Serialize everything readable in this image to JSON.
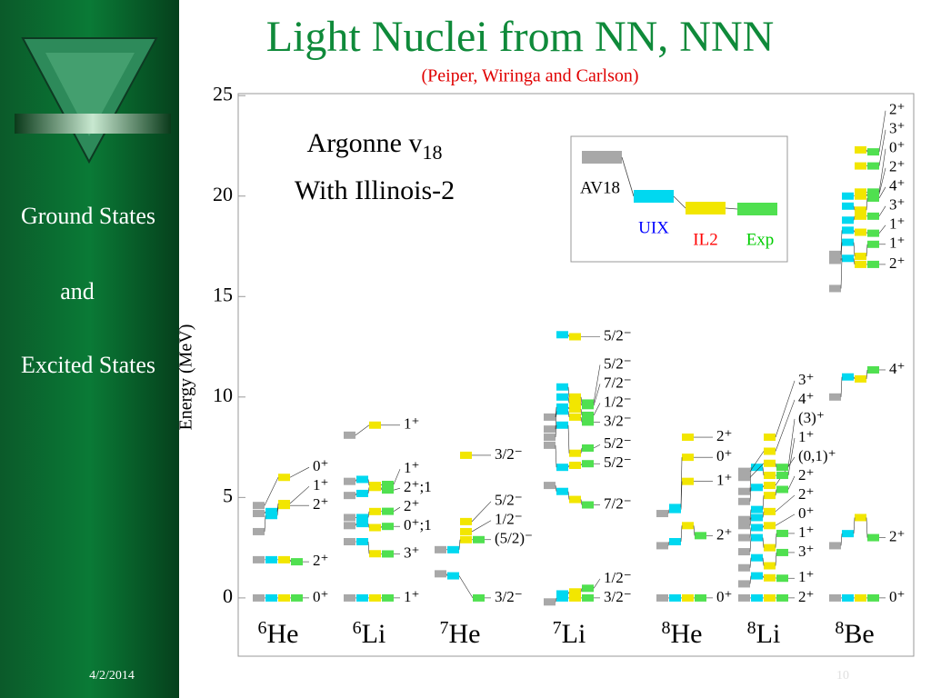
{
  "sidebar": {
    "items": [
      "Ground States",
      "and",
      "Excited States"
    ],
    "date": "4/2/2014"
  },
  "page_number": "10",
  "chart_data": {
    "type": "levels",
    "title": "Light Nuclei from NN, NNN",
    "subtitle": "(Peiper, Wiringa and Carlson)",
    "ylabel": "Energy (MeV)",
    "ylim": [
      -2.9,
      25.1
    ],
    "yticks": [
      0,
      5,
      10,
      15,
      20,
      25
    ],
    "annotation": {
      "line1": "Argonne v",
      "subscript": "18",
      "line2": "With Illinois-2"
    },
    "series": [
      {
        "name": "AV18",
        "color": "#a8a8a8",
        "label_color": "#000000"
      },
      {
        "name": "UIX",
        "color": "#00d8f0",
        "label_color": "#0000ff"
      },
      {
        "name": "IL2",
        "color": "#f2e600",
        "label_color": "#ff0000"
      },
      {
        "name": "Exp",
        "color": "#50e050",
        "label_color": "#00cc00"
      }
    ],
    "nuclei": [
      {
        "mass": "6",
        "symbol": "He",
        "levels": [
          {
            "label": "0⁺",
            "values": [
              0,
              0,
              0,
              0
            ]
          },
          {
            "label": "2⁺",
            "values": [
              1.9,
              1.9,
              1.9,
              1.8
            ]
          },
          {
            "label": "2⁺",
            "values": [
              3.3,
              4.1,
              4.6,
              null
            ]
          },
          {
            "label": "1⁺",
            "values": [
              4.2,
              4.3,
              4.7,
              null
            ]
          },
          {
            "label": "0⁺",
            "values": [
              4.6,
              null,
              6.0,
              null
            ]
          }
        ]
      },
      {
        "mass": "6",
        "symbol": "Li",
        "levels": [
          {
            "label": "1⁺",
            "values": [
              0,
              0,
              0,
              0
            ]
          },
          {
            "label": "3⁺",
            "values": [
              2.8,
              2.8,
              2.2,
              2.19
            ]
          },
          {
            "label": "0⁺;1",
            "values": [
              3.6,
              3.7,
              3.5,
              3.56
            ]
          },
          {
            "label": "2⁺",
            "values": [
              4.0,
              4.0,
              4.3,
              4.31
            ]
          },
          {
            "label": "2⁺;1",
            "values": [
              5.1,
              5.2,
              5.5,
              5.37
            ]
          },
          {
            "label": "1⁺",
            "values": [
              5.8,
              5.9,
              5.6,
              5.65
            ]
          },
          {
            "label": "1⁺",
            "values": [
              8.1,
              null,
              8.6,
              null
            ]
          }
        ]
      },
      {
        "mass": "7",
        "symbol": "He",
        "levels": [
          {
            "label": "3/2⁻",
            "values": [
              1.2,
              1.1,
              null,
              0
            ]
          },
          {
            "label": "(5/2)⁻",
            "values": [
              2.4,
              2.4,
              2.9,
              2.9
            ]
          },
          {
            "label": "1/2⁻",
            "values": [
              null,
              null,
              3.3,
              null
            ]
          },
          {
            "label": "5/2⁻",
            "values": [
              null,
              null,
              3.8,
              null
            ]
          },
          {
            "label": "3/2⁻",
            "values": [
              null,
              null,
              7.1,
              null
            ]
          }
        ]
      },
      {
        "mass": "7",
        "symbol": "Li",
        "levels": [
          {
            "label": "3/2⁻",
            "values": [
              -0.2,
              0,
              0,
              0
            ]
          },
          {
            "label": "1/2⁻",
            "values": [
              null,
              0.2,
              0.3,
              0.48
            ]
          },
          {
            "label": "7/2⁻",
            "values": [
              5.6,
              5.3,
              4.9,
              4.63
            ]
          },
          {
            "label": "5/2⁻",
            "values": [
              7.6,
              6.5,
              6.6,
              6.68
            ]
          },
          {
            "label": "5/2⁻",
            "values": [
              8.0,
              8.6,
              7.2,
              7.46
            ]
          },
          {
            "label": "3/2⁻",
            "values": [
              8.4,
              9.3,
              9.0,
              8.75
            ]
          },
          {
            "label": "1/2⁻",
            "values": [
              9.0,
              9.5,
              9.4,
              9.09
            ]
          },
          {
            "label": "7/2⁻",
            "values": [
              null,
              10.0,
              9.7,
              9.57
            ]
          },
          {
            "label": "5/2⁻",
            "values": [
              null,
              10.5,
              10.0,
              9.7
            ]
          },
          {
            "label": "5/2⁻",
            "values": [
              null,
              13.1,
              13.0,
              null
            ]
          }
        ]
      },
      {
        "mass": "8",
        "symbol": "He",
        "levels": [
          {
            "label": "0⁺",
            "values": [
              0,
              0,
              0,
              0
            ]
          },
          {
            "label": "2⁺",
            "values": [
              2.6,
              2.8,
              3.6,
              3.1
            ]
          },
          {
            "label": "1⁺",
            "values": [
              4.2,
              4.4,
              5.8,
              null
            ]
          },
          {
            "label": "0⁺",
            "values": [
              null,
              4.5,
              7.0,
              null
            ]
          },
          {
            "label": "2⁺",
            "values": [
              null,
              null,
              8.0,
              null
            ]
          }
        ]
      },
      {
        "mass": "8",
        "symbol": "Li",
        "levels": [
          {
            "label": "2⁺",
            "values": [
              0,
              0,
              0,
              0
            ]
          },
          {
            "label": "1⁺",
            "values": [
              0.7,
              1.1,
              1.0,
              0.98
            ]
          },
          {
            "label": "3⁺",
            "values": [
              1.5,
              2.0,
              1.6,
              2.26
            ]
          },
          {
            "label": "1⁺",
            "values": [
              2.3,
              3.0,
              2.5,
              3.21
            ]
          },
          {
            "label": "0⁺",
            "values": [
              3.0,
              3.5,
              3.6,
              null
            ]
          },
          {
            "label": "2⁺",
            "values": [
              3.6,
              4.0,
              4.3,
              null
            ]
          },
          {
            "label": "2⁺",
            "values": [
              3.9,
              4.4,
              5.1,
              5.4
            ]
          },
          {
            "label": "(0,1)⁺",
            "values": [
              4.8,
              5.5,
              5.6,
              null
            ]
          },
          {
            "label": "1⁺",
            "values": [
              5.3,
              6.5,
              6.1,
              6.1
            ]
          },
          {
            "label": "(3)⁺",
            "values": [
              6.0,
              null,
              6.7,
              6.5
            ]
          },
          {
            "label": "4⁺",
            "values": [
              6.3,
              null,
              7.3,
              null
            ]
          },
          {
            "label": "3⁺",
            "values": [
              null,
              null,
              8.0,
              null
            ]
          }
        ]
      },
      {
        "mass": "8",
        "symbol": "Be",
        "levels": [
          {
            "label": "0⁺",
            "values": [
              0,
              0,
              0,
              0
            ]
          },
          {
            "label": "2⁺",
            "values": [
              2.6,
              3.2,
              4.0,
              3.0
            ]
          },
          {
            "label": "4⁺",
            "values": [
              10.0,
              11.0,
              10.9,
              11.35
            ]
          },
          {
            "label": "2⁺",
            "values": [
              15.4,
              16.9,
              16.6,
              16.6
            ]
          },
          {
            "label": "1⁺",
            "values": [
              16.8,
              17.7,
              17.0,
              17.6
            ]
          },
          {
            "label": "1⁺",
            "values": [
              17.1,
              18.3,
              18.2,
              18.15
            ]
          },
          {
            "label": "3⁺",
            "values": [
              null,
              18.8,
              19.0,
              19.0
            ]
          },
          {
            "label": "4⁺",
            "values": [
              null,
              19.5,
              19.3,
              19.9
            ]
          },
          {
            "label": "2⁺",
            "values": [
              null,
              20.0,
              20.0,
              20.1
            ]
          },
          {
            "label": "0⁺",
            "values": [
              null,
              null,
              20.2,
              20.2
            ]
          },
          {
            "label": "3⁺",
            "values": [
              null,
              null,
              21.5,
              21.5
            ]
          },
          {
            "label": "2⁺",
            "values": [
              null,
              null,
              22.3,
              22.2
            ]
          }
        ]
      }
    ]
  }
}
